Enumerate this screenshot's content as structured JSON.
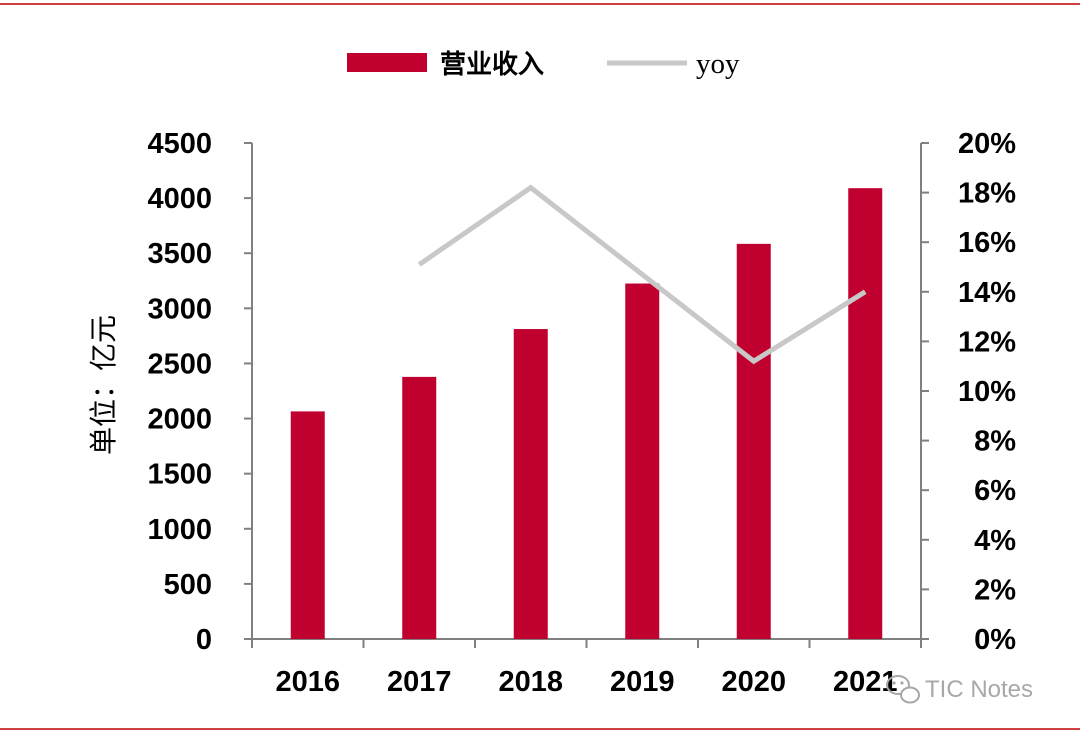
{
  "chart_data": {
    "type": "bar",
    "categories": [
      "2016",
      "2017",
      "2018",
      "2019",
      "2020",
      "2021"
    ],
    "series": [
      {
        "name": "营业收入",
        "type": "bar",
        "axis": "left",
        "color": "#C0002F",
        "values": [
          2065,
          2378,
          2812,
          3225,
          3585,
          4090
        ]
      },
      {
        "name": "yoy",
        "type": "line",
        "axis": "right",
        "color": "#C8C8C8",
        "values": [
          null,
          0.151,
          0.182,
          null,
          0.112,
          0.14
        ]
      }
    ],
    "ylabel": "单位：亿元",
    "ylim": [
      0,
      4500
    ],
    "y_ticks": [
      0,
      500,
      1000,
      1500,
      2000,
      2500,
      3000,
      3500,
      4000,
      4500
    ],
    "y_tick_labels": [
      "0",
      "500",
      "1000",
      "1500",
      "2000",
      "2500",
      "3000",
      "3500",
      "4000",
      "4500"
    ],
    "y2lim": [
      0,
      0.2
    ],
    "y2_ticks": [
      0,
      0.02,
      0.04,
      0.06,
      0.08,
      0.1,
      0.12,
      0.14,
      0.16,
      0.18,
      0.2
    ],
    "y2_tick_labels": [
      "0%",
      "2%",
      "4%",
      "6%",
      "8%",
      "10%",
      "12%",
      "14%",
      "16%",
      "18%",
      "20%"
    ],
    "grid": false,
    "legend_position": "top-center"
  },
  "watermark": {
    "text": "TIC Notes",
    "icon": "wechat-icon"
  },
  "colors": {
    "border_lines": "#C00000",
    "axis": "#808080",
    "watermark": "#A8A8A8"
  }
}
